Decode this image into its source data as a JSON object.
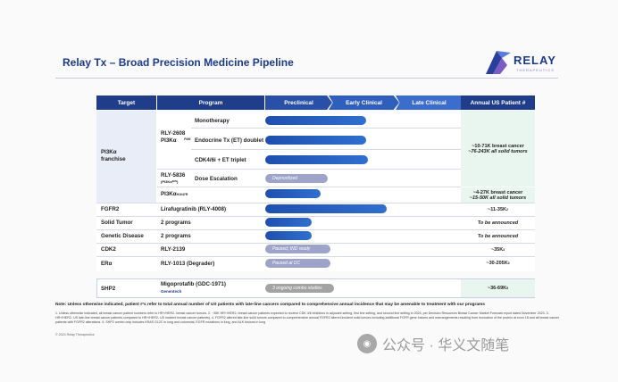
{
  "title": "Relay Tx – Broad Precision Medicine Pipeline",
  "logo": {
    "name": "RELAY",
    "sub": "THERAPEUTICS"
  },
  "headers": {
    "target": "Target",
    "program": "Program",
    "preclinical": "Preclinical",
    "early": "Early Clinical",
    "late": "Late Clinical",
    "annual": "Annual US Patient #"
  },
  "pi3k": {
    "target": "PI3Kα\nfranchise",
    "rly2608": "RLY-2608\nPI3Kα",
    "rly2608_sup": "PAN",
    "mono": "Monotherapy",
    "endo": "Endocrine Tx (ET) doublet",
    "cdk": "CDK4/6i + ET triplet",
    "rly5836": "RLY-5836",
    "rly5836_sub": "(PI3Kα",
    "rly5836_sub_sup": "PAN",
    "rly5836_sub_end": ")",
    "dose": "Dose Escalation",
    "deprioritized": "Deprioritized",
    "h1047r": "PI3Kα",
    "h1047r_sup": "H1047R",
    "annual1_a": "~10-71K breast cancer",
    "annual1_b": "~76-243K all solid tumors",
    "annual2_a": "~4-27K breast cancer",
    "annual2_b": "~15-50K all solid tumors"
  },
  "fgfr2": {
    "target": "FGFR2",
    "program": "Lirafugratinib (RLY-4008)",
    "annual": "~11-35K",
    "annual_sup": "2"
  },
  "solid": {
    "target": "Solid Tumor",
    "program": "2 programs",
    "annual": "To be announced"
  },
  "genetic": {
    "target": "Genetic Disease",
    "program": "2 programs",
    "annual": "To be announced"
  },
  "cdk2": {
    "target": "CDK2",
    "program": "RLY-2139",
    "bar": "Paused; IND ready",
    "annual": "~35K",
    "annual_sup": "3"
  },
  "era": {
    "target": "ERα",
    "program": "RLY-1013 (Degrader)",
    "bar": "Paused at DC",
    "annual": "~30-205K",
    "annual_sup": "3"
  },
  "shp2": {
    "target": "SHP2",
    "program": "Migoprotafib (GDC-1971)",
    "partner": "Genentech",
    "bar": "3 ongoing combo studies",
    "annual": "~36-69K",
    "annual_sup": "5"
  },
  "note": "Note: Unless otherwise indicated, patient #’s refer to total annual number of US patients with late-line cancers compared to comprehensive annual incidence that may be amenable to treatment with our programs",
  "footnote": "1. Unless otherwise indicated, all breast cancer patient numbers refer to HR+/HER2- breast cancer tumors. 2. ~35K HR+/HER2- breast cancer patients expected to receive CDK 4/6 inhibitors in adjuvant setting, first line setting, and second line setting in 2024, per Decision Resources Breast Cancer Market Forecast report dated November 2023. 3. HR+/HER2- US late-line breast cancer patients compared to HR+/HER2- US incident breast cancer patients). 4. FGFR2 altered late-line solid tumors compared to comprehensive annual FGFR2 altered incident solid tumors including additional FGFR gene fusions and rearrangements resulting from truncation of the protein at exon 18 and all breast cancer patients with FGFR2 alterations. 5. SHP2 combo only includes KRAS G12C in lung and colorectal, EGFR mutations in lung, and ALK fusions in lung",
  "copyright": "© 2024 Relay Therapeutics",
  "watermark": "公众号 · 华义文随笔",
  "colors": {
    "header_dark": "#1f3d8a",
    "header_mid": "#2f62c4",
    "bar_blue": "#2356b8",
    "bar_grey": "#9ea3c9"
  }
}
